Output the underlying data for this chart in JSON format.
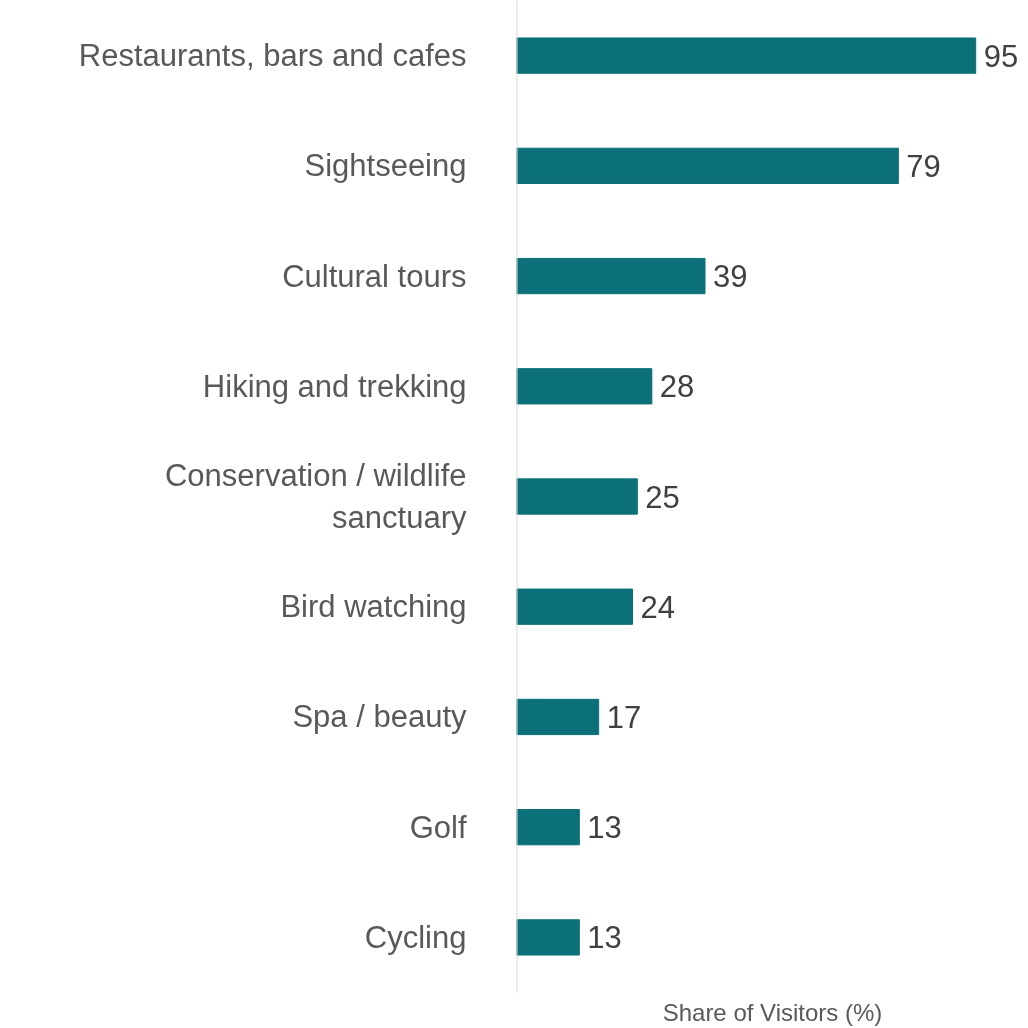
{
  "chart_data": {
    "type": "bar",
    "orientation": "horizontal",
    "xlabel": "Share of Visitors (%)",
    "categories": [
      "Restaurants, bars and cafes",
      "Sightseeing",
      "Cultural tours",
      "Hiking and trekking",
      "Conservation / wildlife sanctuary",
      "Bird watching",
      "Spa / beauty",
      "Golf",
      "Cycling"
    ],
    "values": [
      95,
      79,
      39,
      28,
      25,
      24,
      17,
      13,
      13
    ],
    "color": "#0b7077",
    "data_labels": true
  }
}
